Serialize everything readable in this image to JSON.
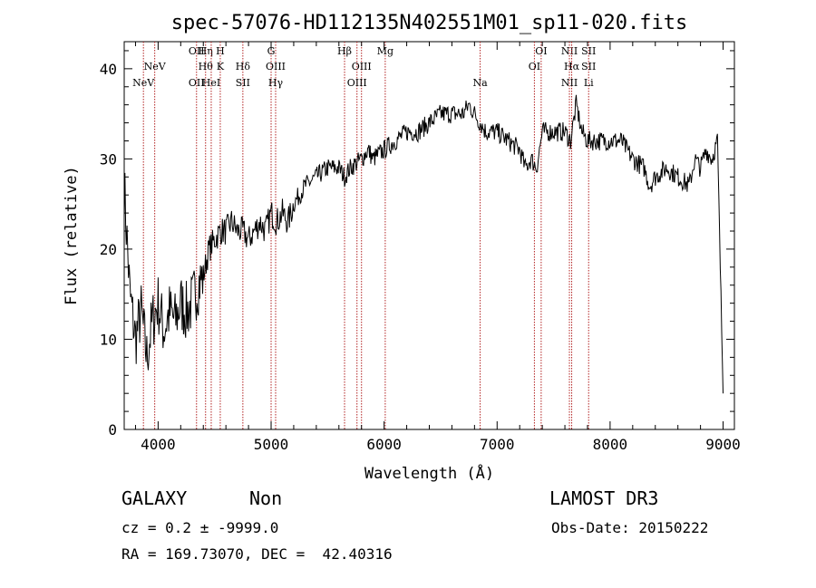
{
  "chart_data": {
    "type": "line",
    "title": "spec-57076-HD112135N402551M01_sp11-020.fits",
    "xlabel": "Wavelength (Å)",
    "ylabel": "Flux (relative)",
    "xlim": [
      3700,
      9100
    ],
    "ylim": [
      0,
      43
    ],
    "x_ticks": [
      4000,
      5000,
      6000,
      7000,
      8000,
      9000
    ],
    "y_ticks": [
      0,
      10,
      20,
      30,
      40
    ],
    "series": [
      {
        "name": "spectrum",
        "x": [
          3700,
          3750,
          3800,
          3850,
          3900,
          3950,
          4000,
          4050,
          4100,
          4150,
          4200,
          4250,
          4300,
          4350,
          4400,
          4450,
          4500,
          4550,
          4600,
          4650,
          4700,
          4750,
          4800,
          4850,
          4900,
          4950,
          5000,
          5050,
          5100,
          5150,
          5200,
          5300,
          5400,
          5500,
          5600,
          5650,
          5700,
          5800,
          5860,
          5900,
          6000,
          6100,
          6200,
          6300,
          6400,
          6500,
          6600,
          6700,
          6750,
          6800,
          6850,
          6900,
          7000,
          7100,
          7200,
          7250,
          7300,
          7350,
          7400,
          7500,
          7600,
          7650,
          7700,
          7750,
          7800,
          7900,
          8000,
          8100,
          8200,
          8300,
          8350,
          8400,
          8500,
          8600,
          8700,
          8750,
          8800,
          8850,
          8900,
          8950,
          9000
        ],
        "values": [
          27,
          15,
          10,
          13,
          8,
          12,
          14,
          11,
          13,
          12,
          14,
          13,
          14,
          16,
          17,
          20,
          21,
          22,
          22,
          23,
          22,
          22,
          21,
          22,
          23,
          22,
          24,
          23,
          24,
          23,
          25,
          27,
          28,
          29,
          29,
          28,
          29,
          30,
          31,
          30,
          31,
          32,
          33,
          33,
          34,
          35,
          35,
          35,
          36,
          35,
          34,
          33,
          33,
          32,
          31,
          29,
          30,
          29,
          33,
          33,
          33,
          32,
          36,
          33,
          32,
          32,
          32,
          32,
          30,
          29,
          27,
          28,
          29,
          28,
          27,
          30,
          29,
          31,
          30,
          32,
          4
        ]
      }
    ],
    "emission_markers": [
      {
        "wavelength": 3870,
        "label": "NeV",
        "row": 2
      },
      {
        "wavelength": 3970,
        "label": "NeV",
        "row": 1
      },
      {
        "wavelength": 4340,
        "label": "OII",
        "row": 0
      },
      {
        "wavelength": 4340,
        "label": "OII",
        "row": 2
      },
      {
        "wavelength": 4420,
        "label": "Hη",
        "row": 0
      },
      {
        "wavelength": 4420,
        "label": "Hθ",
        "row": 1
      },
      {
        "wavelength": 4470,
        "label": "HeI",
        "row": 2
      },
      {
        "wavelength": 4550,
        "label": "H",
        "row": 0
      },
      {
        "wavelength": 4550,
        "label": "K",
        "row": 1
      },
      {
        "wavelength": 4750,
        "label": "Hδ",
        "row": 1
      },
      {
        "wavelength": 4750,
        "label": "SII",
        "row": 2
      },
      {
        "wavelength": 5000,
        "label": "G",
        "row": 0
      },
      {
        "wavelength": 5040,
        "label": "OIII",
        "row": 1
      },
      {
        "wavelength": 5040,
        "label": "Hγ",
        "row": 2
      },
      {
        "wavelength": 5650,
        "label": "Hβ",
        "row": 0
      },
      {
        "wavelength": 5800,
        "label": "OIII",
        "row": 1
      },
      {
        "wavelength": 5760,
        "label": "OIII",
        "row": 2
      },
      {
        "wavelength": 6010,
        "label": "Mg",
        "row": 0
      },
      {
        "wavelength": 6850,
        "label": "Na",
        "row": 2
      },
      {
        "wavelength": 7390,
        "label": "OI",
        "row": 0
      },
      {
        "wavelength": 7330,
        "label": "OI",
        "row": 1
      },
      {
        "wavelength": 7640,
        "label": "NII",
        "row": 0
      },
      {
        "wavelength": 7660,
        "label": "Hα",
        "row": 1
      },
      {
        "wavelength": 7640,
        "label": "NII",
        "row": 2
      },
      {
        "wavelength": 7810,
        "label": "SII",
        "row": 0
      },
      {
        "wavelength": 7810,
        "label": "SII",
        "row": 1
      },
      {
        "wavelength": 7810,
        "label": "Li",
        "row": 2
      }
    ]
  },
  "info": {
    "class": "GALAXY",
    "subclass": "Non",
    "survey": "LAMOST DR3",
    "cz": "cz = 0.2 ± -9999.0",
    "obs_date": "Obs-Date: 20150222",
    "coords": "RA = 169.73070, DEC =  42.40316"
  },
  "colors": {
    "marker": "#b22222",
    "spectrum": "#000000"
  }
}
